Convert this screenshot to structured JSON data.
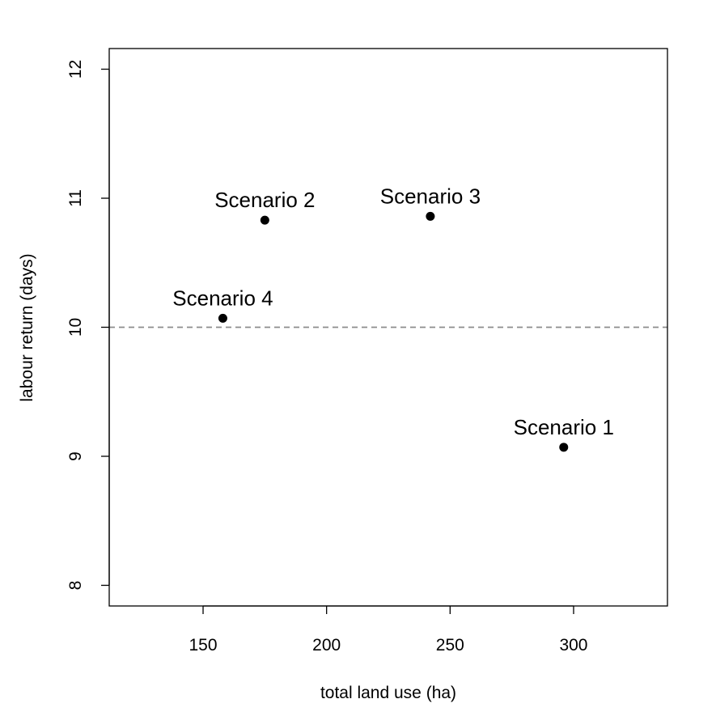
{
  "chart_data": {
    "type": "scatter",
    "title": "",
    "xlabel": "total land use (ha)",
    "ylabel": "labour return (days)",
    "xlim": [
      112,
      338
    ],
    "ylim": [
      7.84,
      12.16
    ],
    "xticks": [
      150,
      200,
      250,
      300
    ],
    "yticks": [
      8,
      9,
      10,
      11,
      12
    ],
    "grid": false,
    "reference_line": {
      "axis": "y",
      "value": 10,
      "style": "dashed",
      "color": "#8c8c8c"
    },
    "point_color": "#000000",
    "points": [
      {
        "label": "Scenario 1",
        "x": 296,
        "y": 9.07
      },
      {
        "label": "Scenario 2",
        "x": 175,
        "y": 10.83
      },
      {
        "label": "Scenario 3",
        "x": 242,
        "y": 10.86
      },
      {
        "label": "Scenario 4",
        "x": 158,
        "y": 10.07
      }
    ]
  }
}
